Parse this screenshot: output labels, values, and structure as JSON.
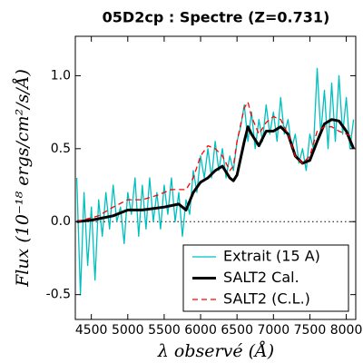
{
  "chart_data": {
    "type": "line",
    "title": "05D2cp : Spectre (Z=0.731)",
    "x_label": "λ observé (Å)",
    "y_label": "Flux (10⁻¹⁸ ergs/cm²/s/Å)",
    "xlim": [
      4280,
      8130
    ],
    "ylim": [
      -0.67,
      1.27
    ],
    "xticks": [
      4500,
      5000,
      5500,
      6000,
      6500,
      7000,
      7500,
      8000
    ],
    "yticks": [
      {
        "value": -0.5,
        "label": "-0.5"
      },
      {
        "value": 0,
        "label": "0.0"
      },
      {
        "value": 0.5,
        "label": "0.5"
      },
      {
        "value": 1,
        "label": "1.0"
      }
    ],
    "reference_line": 0,
    "legend": "lower right",
    "series": [
      {
        "name": "Extrait (15 A)",
        "color": "#00bfbf",
        "style": "solid",
        "width": 1.3,
        "x": [
          4300,
          4350,
          4400,
          4450,
          4500,
          4550,
          4600,
          4650,
          4700,
          4750,
          4800,
          4850,
          4900,
          4950,
          5000,
          5050,
          5100,
          5150,
          5200,
          5250,
          5300,
          5350,
          5400,
          5450,
          5500,
          5550,
          5600,
          5650,
          5700,
          5750,
          5800,
          5850,
          5900,
          5950,
          6000,
          6050,
          6100,
          6150,
          6200,
          6250,
          6300,
          6350,
          6400,
          6450,
          6500,
          6550,
          6600,
          6650,
          6700,
          6750,
          6800,
          6850,
          6900,
          6950,
          7000,
          7050,
          7100,
          7150,
          7200,
          7250,
          7300,
          7350,
          7400,
          7450,
          7500,
          7550,
          7600,
          7650,
          7700,
          7750,
          7800,
          7850,
          7900,
          7950,
          8000,
          8050,
          8100
        ],
        "values": [
          0.3,
          -0.5,
          0.2,
          -0.3,
          0.1,
          -0.4,
          0.15,
          -0.1,
          0.2,
          -0.05,
          0.25,
          0.0,
          0.1,
          -0.15,
          0.2,
          0.05,
          0.3,
          -0.1,
          0.25,
          -0.05,
          0.3,
          0.0,
          0.2,
          -0.05,
          0.25,
          0.05,
          0.3,
          0.0,
          0.2,
          -0.1,
          0.15,
          0.05,
          0.35,
          0.2,
          0.45,
          0.3,
          0.5,
          0.3,
          0.55,
          0.35,
          0.5,
          0.3,
          0.45,
          0.35,
          0.55,
          0.65,
          0.8,
          0.55,
          0.75,
          0.5,
          0.7,
          0.55,
          0.8,
          0.6,
          0.75,
          0.55,
          0.85,
          0.6,
          0.7,
          0.5,
          0.6,
          0.4,
          0.5,
          0.35,
          0.6,
          0.5,
          1.05,
          0.6,
          0.9,
          0.5,
          0.95,
          0.55,
          1.0,
          0.6,
          0.85,
          0.5,
          0.7
        ]
      },
      {
        "name": "SALT2 Cal.",
        "color": "#000000",
        "style": "solid",
        "width": 3,
        "x": [
          4300,
          4500,
          4800,
          5000,
          5200,
          5500,
          5700,
          5800,
          5900,
          6000,
          6100,
          6200,
          6300,
          6400,
          6450,
          6500,
          6600,
          6650,
          6700,
          6800,
          6900,
          7000,
          7100,
          7200,
          7300,
          7400,
          7500,
          7600,
          7700,
          7800,
          7900,
          8000,
          8100
        ],
        "values": [
          0.0,
          0.01,
          0.04,
          0.08,
          0.08,
          0.1,
          0.12,
          0.08,
          0.2,
          0.27,
          0.3,
          0.35,
          0.38,
          0.3,
          0.28,
          0.32,
          0.55,
          0.65,
          0.6,
          0.52,
          0.62,
          0.62,
          0.65,
          0.6,
          0.45,
          0.4,
          0.42,
          0.55,
          0.67,
          0.7,
          0.69,
          0.62,
          0.5
        ]
      },
      {
        "name": "SALT2 (C.L.)",
        "color": "#ff0000",
        "style": "dashed",
        "width": 1.3,
        "x": [
          4300,
          4600,
          4800,
          5000,
          5200,
          5400,
          5500,
          5600,
          5800,
          5900,
          6000,
          6100,
          6200,
          6300,
          6400,
          6450,
          6500,
          6600,
          6650,
          6700,
          6800,
          6900,
          7000,
          7100,
          7200,
          7300,
          7400,
          7500,
          7600,
          7700,
          7800,
          7900,
          8000,
          8100
        ],
        "values": [
          0.0,
          0.04,
          0.1,
          0.15,
          0.15,
          0.18,
          0.2,
          0.22,
          0.22,
          0.3,
          0.45,
          0.52,
          0.5,
          0.45,
          0.35,
          0.38,
          0.55,
          0.78,
          0.82,
          0.72,
          0.6,
          0.68,
          0.72,
          0.7,
          0.6,
          0.45,
          0.4,
          0.45,
          0.62,
          0.65,
          0.65,
          0.62,
          0.6,
          0.58
        ]
      }
    ]
  }
}
